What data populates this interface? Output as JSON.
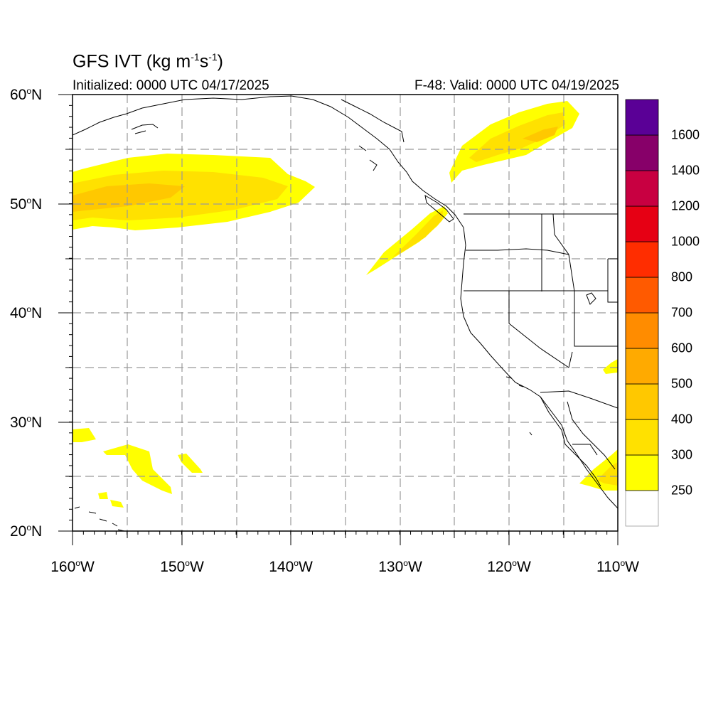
{
  "title": {
    "prefix": "GFS IVT (kg m",
    "exp1": "-1",
    "mid": "s",
    "exp2": "-1",
    "suffix": ")"
  },
  "initialized": "Initialized: 0000 UTC 04/17/2025",
  "valid": "F-48: Valid: 0000 UTC 04/19/2025",
  "lat_labels": [
    {
      "value": "60",
      "deg": "o",
      "hemi": "N"
    },
    {
      "value": "50",
      "deg": "o",
      "hemi": "N"
    },
    {
      "value": "40",
      "deg": "o",
      "hemi": "N"
    },
    {
      "value": "30",
      "deg": "o",
      "hemi": "N"
    },
    {
      "value": "20",
      "deg": "o",
      "hemi": "N"
    }
  ],
  "lon_labels": [
    {
      "value": "160",
      "deg": "o",
      "hemi": "W"
    },
    {
      "value": "150",
      "deg": "o",
      "hemi": "W"
    },
    {
      "value": "140",
      "deg": "o",
      "hemi": "W"
    },
    {
      "value": "130",
      "deg": "o",
      "hemi": "W"
    },
    {
      "value": "120",
      "deg": "o",
      "hemi": "W"
    },
    {
      "value": "110",
      "deg": "o",
      "hemi": "W"
    }
  ],
  "colorbar": {
    "labels": [
      "250",
      "300",
      "400",
      "500",
      "600",
      "700",
      "800",
      "1000",
      "1200",
      "1400",
      "1600"
    ],
    "colors": [
      "#ffffff",
      "#ffff00",
      "#ffe100",
      "#ffc800",
      "#ffaa00",
      "#ff8c00",
      "#ff5a00",
      "#ff2d00",
      "#e60014",
      "#c80041",
      "#870069",
      "#5a0096"
    ]
  }
}
